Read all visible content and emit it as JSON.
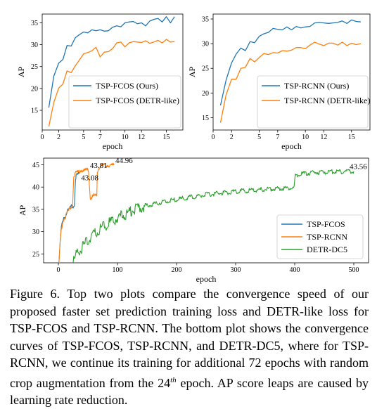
{
  "colors": {
    "blue": "#1f77b4",
    "orange": "#ff7f0e",
    "green": "#2ca02c"
  },
  "chart_data": [
    {
      "type": "line",
      "xlabel": "epoch",
      "ylabel": "AP",
      "xlim": [
        0,
        17
      ],
      "ylim": [
        10.5,
        37
      ],
      "xticks": [
        0,
        2,
        5,
        7,
        10,
        12,
        15
      ],
      "xtick_labels": [
        "0",
        "2",
        "5",
        "7",
        "10",
        "12",
        "15"
      ],
      "yticks": [
        15,
        20,
        25,
        30,
        35
      ],
      "ytick_labels": [
        "15",
        "20",
        "25",
        "30",
        "35"
      ],
      "legend_position": "lower-right",
      "x": [
        0.8,
        1.4,
        2,
        2.5,
        3,
        3.5,
        4,
        4.5,
        5,
        5.5,
        6,
        6.5,
        7,
        7.5,
        8,
        8.5,
        9,
        9.5,
        10,
        10.5,
        11,
        11.5,
        12,
        12.5,
        13,
        13.5,
        14,
        14.5,
        15,
        15.5,
        16
      ],
      "series": [
        {
          "name": "TSP-FCOS (Ours)",
          "color": "blue",
          "values": [
            15.6,
            22.8,
            25.8,
            26.6,
            29.8,
            29.7,
            31.6,
            32.3,
            32.9,
            32.7,
            33.4,
            33.2,
            33.4,
            33.1,
            33.2,
            34.0,
            34.3,
            34.1,
            35.0,
            35.2,
            35.3,
            34.8,
            35.0,
            34.3,
            35.4,
            35.8,
            36.0,
            35.2,
            36.4,
            35.0,
            36.4
          ]
        },
        {
          "name": "TSP-FCOS (DETR-like)",
          "color": "orange",
          "values": [
            11.3,
            16.8,
            20.1,
            21.0,
            24.0,
            23.6,
            25.2,
            26.5,
            27.9,
            28.2,
            28.6,
            29.4,
            27.2,
            28.3,
            28.4,
            29.1,
            30.4,
            30.6,
            29.5,
            30.4,
            30.7,
            30.6,
            30.5,
            30.9,
            30.3,
            30.6,
            31.0,
            30.4,
            31.2,
            30.6,
            30.7
          ]
        }
      ]
    },
    {
      "type": "line",
      "xlabel": "epoch",
      "ylabel": "AP",
      "xlim": [
        0,
        17
      ],
      "ylim": [
        12.5,
        36
      ],
      "xticks": [
        0,
        2,
        5,
        7,
        10,
        12,
        15
      ],
      "xtick_labels": [
        "0",
        "2",
        "5",
        "7",
        "10",
        "12",
        "15"
      ],
      "yticks": [
        15,
        20,
        25,
        30,
        35
      ],
      "ytick_labels": [
        "15",
        "20",
        "25",
        "30",
        "35"
      ],
      "legend_position": "lower-right",
      "x": [
        0.8,
        1.4,
        2,
        2.5,
        3,
        3.5,
        4,
        4.5,
        5,
        5.5,
        6,
        6.5,
        7,
        7.5,
        8,
        8.5,
        9,
        9.5,
        10,
        10.5,
        11,
        11.5,
        12,
        12.5,
        13,
        13.5,
        14,
        14.5,
        15,
        15.5,
        16
      ],
      "series": [
        {
          "name": "TSP-RCNN (Ours)",
          "color": "blue",
          "values": [
            17.5,
            22.6,
            26.1,
            27.9,
            29.1,
            28.6,
            30.4,
            30.2,
            31.5,
            32.0,
            32.3,
            33.1,
            32.9,
            32.8,
            33.4,
            32.8,
            33.5,
            33.2,
            33.4,
            33.5,
            34.2,
            34.3,
            34.2,
            34.1,
            34.2,
            34.3,
            34.6,
            34.1,
            34.8,
            34.5,
            34.4
          ]
        },
        {
          "name": "TSP-RCNN (DETR-like)",
          "color": "orange",
          "values": [
            14.0,
            19.6,
            22.8,
            22.8,
            25.0,
            25.2,
            27.0,
            26.3,
            27.2,
            28.0,
            27.8,
            28.2,
            28.1,
            28.6,
            28.5,
            28.7,
            29.2,
            29.2,
            29.0,
            29.7,
            30.3,
            29.9,
            29.6,
            30.1,
            30.1,
            29.7,
            30.3,
            29.6,
            30.1,
            29.8,
            30.0
          ]
        }
      ]
    },
    {
      "type": "line",
      "xlabel": "epoch",
      "ylabel": "AP",
      "xlim": [
        -25,
        525
      ],
      "ylim": [
        23,
        46.5
      ],
      "xticks": [
        0,
        100,
        200,
        300,
        400,
        500
      ],
      "xtick_labels": [
        "0",
        "100",
        "200",
        "300",
        "400",
        "500"
      ],
      "yticks": [
        25,
        30,
        35,
        40,
        45
      ],
      "ytick_labels": [
        "25",
        "30",
        "35",
        "40",
        "45"
      ],
      "legend_position": "lower-right",
      "series": [
        {
          "name": "TSP-FCOS",
          "color": "blue",
          "x": [
            1,
            3,
            5,
            7,
            9,
            11,
            13,
            15,
            17,
            19,
            21,
            23,
            25,
            27,
            29,
            31,
            33,
            35,
            36
          ],
          "values": [
            23,
            27.5,
            31.0,
            32.2,
            33.4,
            33.0,
            34.0,
            34.5,
            34.8,
            35.1,
            35.5,
            36.0,
            35.6,
            36.2,
            42.0,
            42.6,
            42.8,
            43.0,
            43.08
          ]
        },
        {
          "name": "TSP-RCNN",
          "color": "orange",
          "x": [
            1,
            3,
            5,
            8,
            11,
            14,
            17,
            20,
            22,
            24,
            26,
            28,
            30,
            33,
            36,
            39,
            42,
            45,
            48,
            51,
            54,
            57,
            60,
            63,
            65,
            66,
            68,
            70,
            72,
            75,
            78,
            82,
            86,
            90,
            94
          ],
          "values": [
            23,
            27.4,
            30.6,
            32.5,
            33.2,
            33.8,
            34.6,
            35.3,
            35.6,
            36.0,
            42.5,
            43.0,
            43.2,
            43.4,
            43.6,
            43.8,
            43.7,
            43.7,
            43.8,
            43.81,
            37.5,
            37.8,
            38.1,
            38.0,
            38.2,
            43.5,
            44.4,
            44.6,
            44.8,
            44.8,
            44.9,
            44.9,
            44.95,
            44.9,
            44.96
          ]
        },
        {
          "name": "DETR-DC5",
          "color": "green",
          "x": [
            25,
            30,
            40,
            50,
            60,
            70,
            80,
            90,
            100,
            125,
            150,
            175,
            200,
            250,
            300,
            350,
            399,
            401,
            410,
            425,
            450,
            475,
            500
          ],
          "values": [
            23,
            24.5,
            26.5,
            28.0,
            29.4,
            30.4,
            31.5,
            32.3,
            33.0,
            34.8,
            35.8,
            36.6,
            37.2,
            38.3,
            39.0,
            39.5,
            39.8,
            42.5,
            42.9,
            43.2,
            43.4,
            43.5,
            43.56
          ]
        }
      ],
      "annotations": [
        "43.81",
        "44.96",
        "43.08",
        "43.56"
      ]
    }
  ],
  "caption": {
    "text_before_superscript": "Figure 6. Top two plots compare the convergence speed of our proposed faster set prediction training loss and DETR-like loss for TSP-FCOS and TSP-RCNN. The bottom plot shows the convergence curves of TSP-FCOS, TSP-RCNN, and DETR-DC5, where for TSP-RCNN, we continue its training for additional 72 epochs with random crop augmentation from the 24",
    "superscript": "th",
    "text_after_superscript": " epoch. AP score leaps are caused by learning rate reduction."
  }
}
